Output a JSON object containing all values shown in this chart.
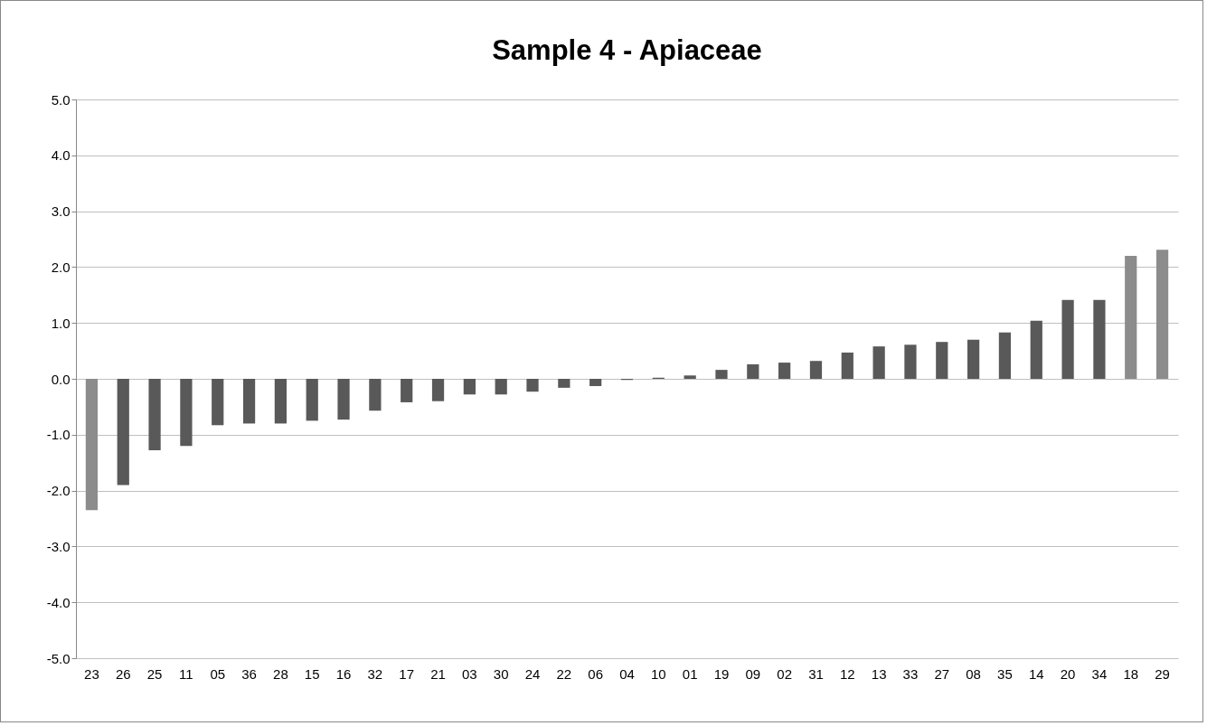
{
  "chart_data": {
    "type": "bar",
    "title": "Sample 4 - Apiaceae",
    "categories": [
      "23",
      "26",
      "25",
      "11",
      "05",
      "36",
      "28",
      "15",
      "16",
      "32",
      "17",
      "21",
      "03",
      "30",
      "24",
      "22",
      "06",
      "04",
      "10",
      "01",
      "19",
      "09",
      "02",
      "31",
      "12",
      "13",
      "33",
      "27",
      "08",
      "35",
      "14",
      "20",
      "34",
      "18",
      "29"
    ],
    "values": [
      -2.35,
      -1.9,
      -1.28,
      -1.2,
      -0.83,
      -0.8,
      -0.8,
      -0.75,
      -0.73,
      -0.57,
      -0.42,
      -0.4,
      -0.28,
      -0.28,
      -0.23,
      -0.16,
      -0.13,
      -0.02,
      0.02,
      0.06,
      0.16,
      0.26,
      0.29,
      0.32,
      0.47,
      0.58,
      0.61,
      0.66,
      0.7,
      0.83,
      1.04,
      1.41,
      1.41,
      2.2,
      2.31
    ],
    "colors": [
      "#8c8c8c",
      "#595959",
      "#595959",
      "#595959",
      "#595959",
      "#595959",
      "#595959",
      "#595959",
      "#595959",
      "#595959",
      "#595959",
      "#595959",
      "#595959",
      "#595959",
      "#595959",
      "#595959",
      "#595959",
      "#595959",
      "#595959",
      "#595959",
      "#595959",
      "#595959",
      "#595959",
      "#595959",
      "#595959",
      "#595959",
      "#595959",
      "#595959",
      "#595959",
      "#595959",
      "#595959",
      "#595959",
      "#595959",
      "#8c8c8c",
      "#8c8c8c"
    ],
    "ylim": [
      -5,
      5
    ],
    "yticks": [
      {
        "value": -5,
        "label": "-5.0"
      },
      {
        "value": -4,
        "label": "-4.0"
      },
      {
        "value": -3,
        "label": "-3.0"
      },
      {
        "value": -2,
        "label": "-2.0"
      },
      {
        "value": -1,
        "label": "-1.0"
      },
      {
        "value": 0,
        "label": "0.0"
      },
      {
        "value": 1,
        "label": "1.0"
      },
      {
        "value": 2,
        "label": "2.0"
      },
      {
        "value": 3,
        "label": "3.0"
      },
      {
        "value": 4,
        "label": "4.0"
      },
      {
        "value": 5,
        "label": "5.0"
      }
    ],
    "grid": "y"
  }
}
